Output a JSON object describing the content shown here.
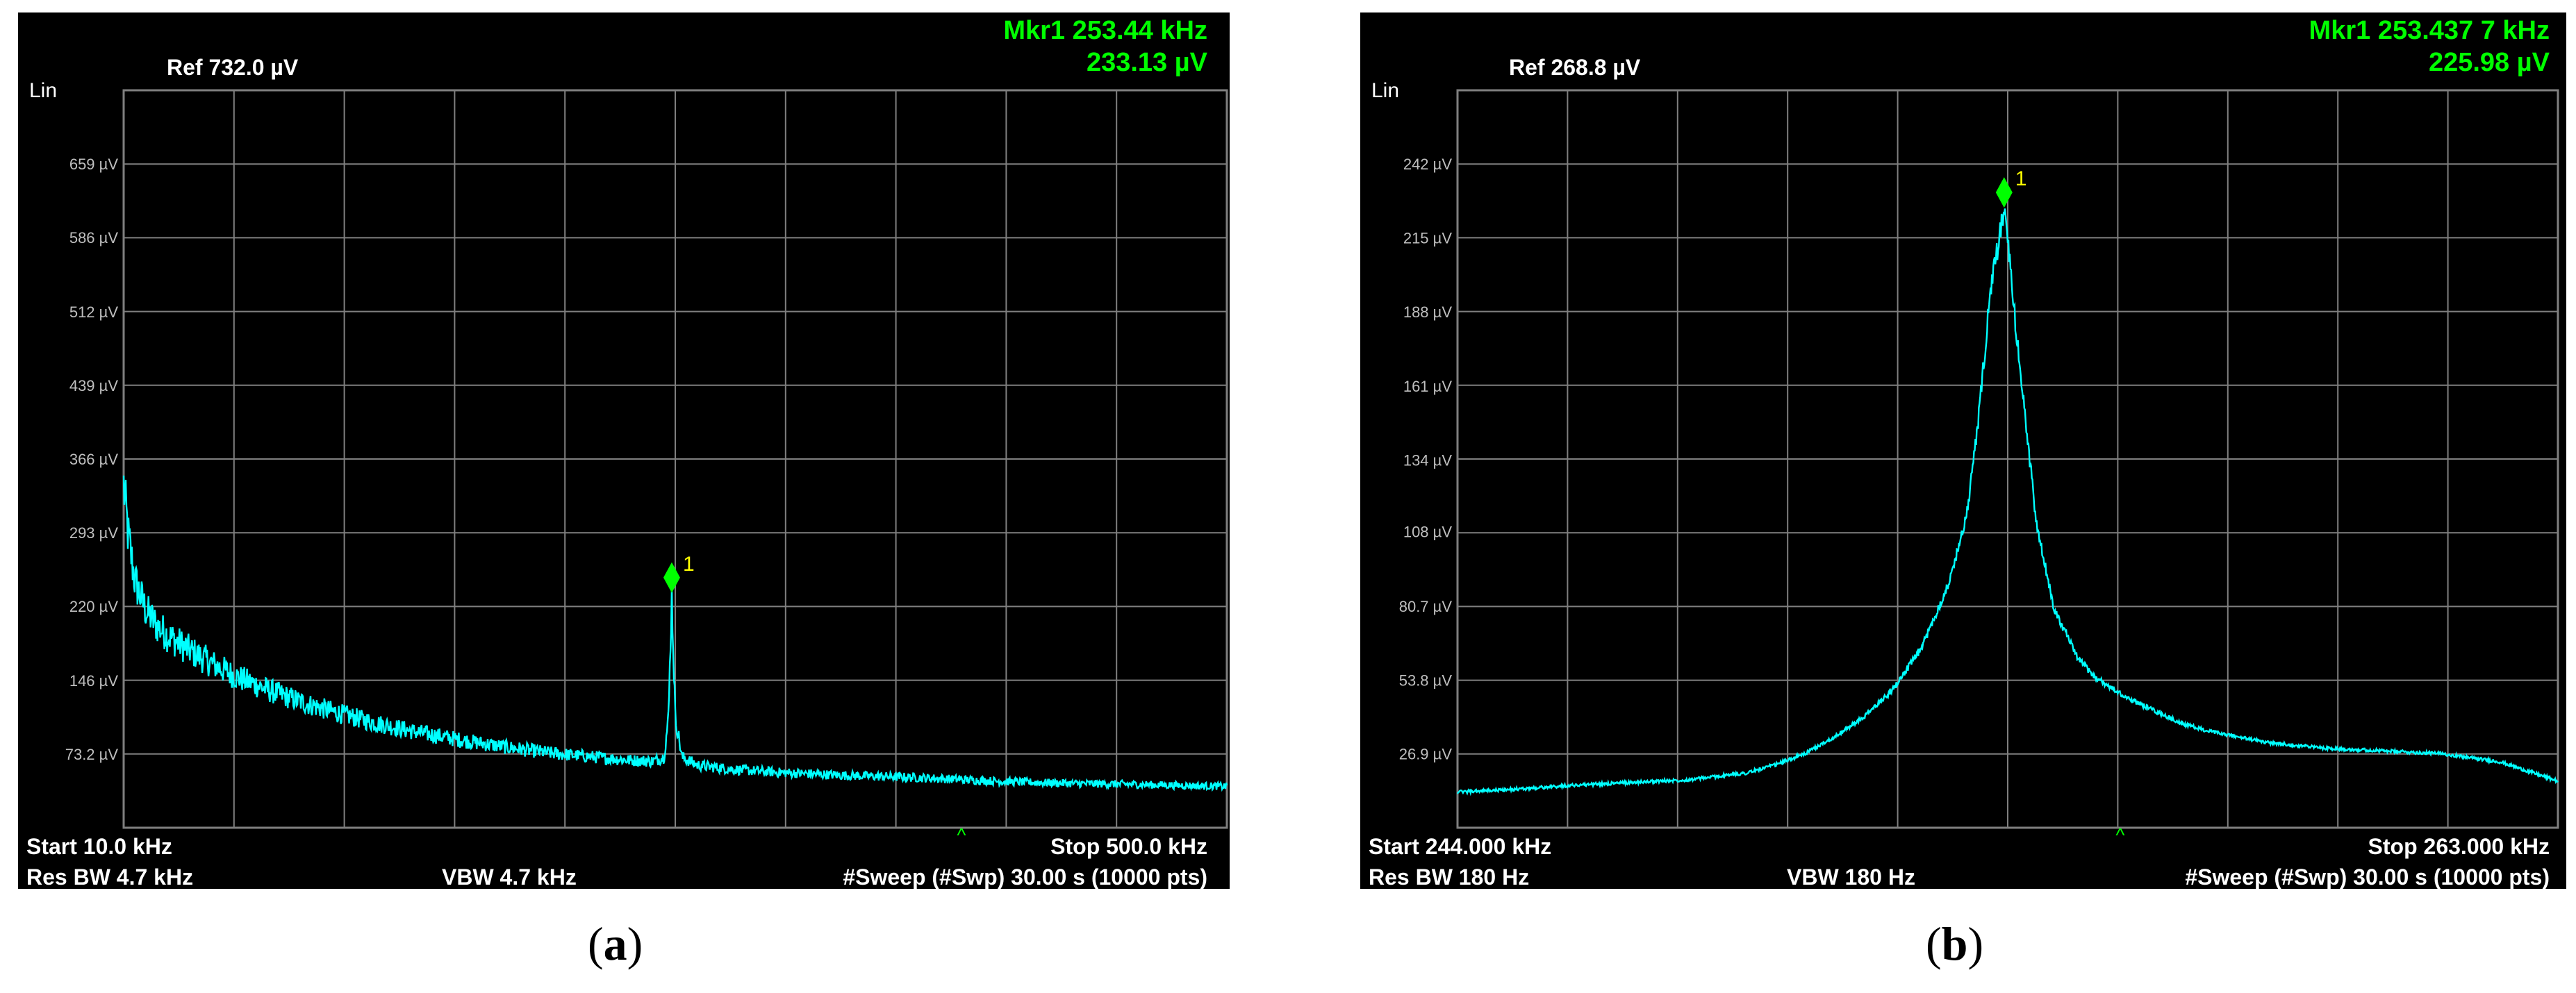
{
  "colors": {
    "background": "#000000",
    "grid": "#7f7f7f",
    "trace": "#00ffff",
    "marker": "#00ff00",
    "marker_number": "#ffff00",
    "header_marker_text": "#00ff00",
    "label_text": "#ffffff",
    "axis_label_text": "#bfbfbf"
  },
  "panels": [
    {
      "id": "a",
      "caption_letter": "a",
      "scale_label": "Lin",
      "ref_label": "Ref 732.0 µV",
      "marker_freq": "Mkr1 253.44 kHz",
      "marker_amp": "233.13 µV",
      "marker_number": "1",
      "start_label": "Start 10.0 kHz",
      "stop_label": "Stop 500.0 kHz",
      "res_bw_label": "Res BW 4.7 kHz",
      "vbw_label": "VBW 4.7 kHz",
      "sweep_label": "#Sweep (#Swp)  30.00 s (10000 pts)",
      "center_tick_symbol": "^"
    },
    {
      "id": "b",
      "caption_letter": "b",
      "scale_label": "Lin",
      "ref_label": "Ref 268.8 µV",
      "marker_freq": "Mkr1 253.437 7 kHz",
      "marker_amp": "225.98 µV",
      "marker_number": "1",
      "start_label": "Start 244.000 kHz",
      "stop_label": "Stop 263.000 kHz",
      "res_bw_label": "Res BW 180 Hz",
      "vbw_label": "VBW 180 Hz",
      "sweep_label": "#Sweep (#Swp)  30.00 s (10000 pts)",
      "center_tick_symbol": "^"
    }
  ],
  "chart_data": [
    {
      "type": "line",
      "panel": "a",
      "xunit": "kHz",
      "yunit": "µV",
      "xlim": [
        10.0,
        500.0
      ],
      "ylim": [
        0,
        732.0
      ],
      "grid": true,
      "ytick_labels": [
        "659 µV",
        "586 µV",
        "512 µV",
        "439 µV",
        "366 µV",
        "293 µV",
        "220 µV",
        "146 µV",
        "73.2 µV"
      ],
      "ytick_values": [
        659,
        586,
        512,
        439,
        366,
        293,
        220,
        146,
        73.2
      ],
      "marker": {
        "label": "1",
        "x": 253.44,
        "y": 233.13
      },
      "series": [
        {
          "values_x": [
            10,
            12,
            15,
            20,
            25,
            30,
            40,
            50,
            60,
            75,
            90,
            105,
            120,
            140,
            160,
            180,
            200,
            220,
            235,
            245,
            250,
            252,
            253.44,
            255,
            258,
            265,
            280,
            300,
            330,
            360,
            400,
            430,
            460,
            500
          ],
          "values_y": [
            340,
            290,
            245,
            215,
            200,
            190,
            175,
            162,
            150,
            136,
            124,
            114,
            105,
            95,
            87,
            80,
            74,
            70,
            67,
            66,
            70,
            110,
            233,
            110,
            70,
            62,
            58,
            55,
            52,
            50,
            46,
            44,
            43,
            41
          ]
        }
      ]
    },
    {
      "type": "line",
      "panel": "b",
      "xunit": "kHz",
      "yunit": "µV",
      "xlim": [
        244.0,
        263.0
      ],
      "ylim": [
        0,
        268.8
      ],
      "grid": true,
      "ytick_labels": [
        "242 µV",
        "215 µV",
        "188 µV",
        "161 µV",
        "134 µV",
        "108 µV",
        "80.7 µV",
        "53.8 µV",
        "26.9 µV"
      ],
      "ytick_values": [
        242,
        215,
        188,
        161,
        134,
        108,
        80.7,
        53.8,
        26.9
      ],
      "marker": {
        "label": "1",
        "x": 253.4377,
        "y": 225.98
      },
      "series": [
        {
          "values_x": [
            244.0,
            245.0,
            246.0,
            247.0,
            248.0,
            249.0,
            249.5,
            250.0,
            250.5,
            251.0,
            251.5,
            252.0,
            252.5,
            252.8,
            253.0,
            253.2,
            253.4377,
            253.7,
            254.0,
            254.3,
            254.7,
            255.0,
            255.5,
            256.0,
            256.5,
            257.0,
            258.0,
            259.0,
            260.0,
            261.0,
            262.0,
            263.0
          ],
          "values_y": [
            13,
            14,
            15.5,
            16.5,
            17.5,
            20,
            23,
            27,
            33,
            40,
            50,
            65,
            90,
            115,
            150,
            195,
            225.98,
            170,
            110,
            80,
            62,
            55,
            48,
            43,
            38,
            35,
            31,
            29,
            28,
            27,
            24,
            17
          ]
        }
      ]
    }
  ]
}
